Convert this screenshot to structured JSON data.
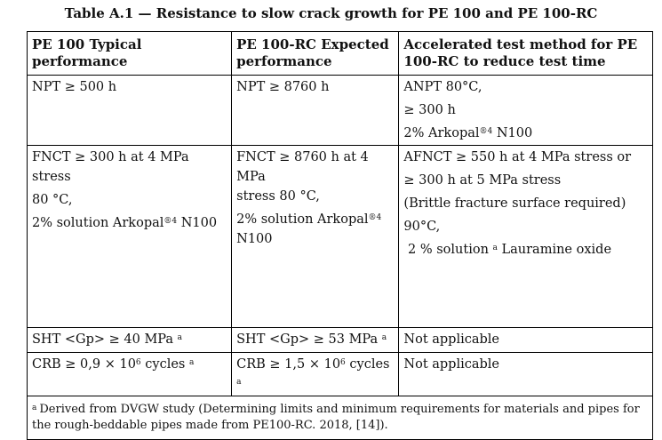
{
  "caption": "Table A.1 — Resistance to slow crack growth for PE 100 and PE 100-RC",
  "headers": [
    "PE 100 Typical performance",
    "PE 100-RC Expected performance",
    "Accelerated test method for PE 100-RC to reduce test time"
  ],
  "rows": {
    "npt": {
      "c1": "NPT ≥ 500 h",
      "c2": "NPT ≥ 8760 h",
      "c3": [
        "ANPT 80°C,",
        "≥ 300 h",
        "2% Arkopal",
        "N100"
      ],
      "c3_mark": "®4"
    },
    "fnct": {
      "c1": [
        "FNCT ≥ 300 h at 4 MPa stress",
        "80 °C,",
        "2% solution Arkopal",
        "N100"
      ],
      "c1_mark": "®4",
      "c2": [
        "FNCT ≥ 8760 h at 4 MPa",
        "stress 80 °C,",
        "2% solution Arkopal",
        "N100"
      ],
      "c2_mark": "®4",
      "c3": [
        "AFNCT ≥ 550 h at 4 MPa stress or",
        "≥ 300 h at 5 MPa stress",
        "(Brittle fracture surface required)",
        "90°C,",
        "2 % solution",
        "Lauramine oxide"
      ],
      "c3_mark": "a"
    },
    "sht": {
      "c1": "SHT <Gp> ≥ 40 MPa",
      "c1_mark": "a",
      "c2": "SHT <Gp> ≥ 53 MPa",
      "c2_mark": "a",
      "c3": "Not applicable"
    },
    "crb": {
      "c1_pre": "CRB ≥ 0,9 × 10",
      "c1_exp": "6",
      "c1_post": " cycles",
      "c1_mark": "a",
      "c2_pre": "CRB ≥ 1,5 × 10",
      "c2_exp": "6",
      "c2_post": " cycles",
      "c2_mark": "a",
      "c3": "Not applicable"
    }
  },
  "footnote": {
    "mark": "a",
    "text": "Derived from DVGW study (Determining limits and minimum requirements for materials and pipes for the rough-beddable pipes made from PE100-RC. 2018, [14])."
  }
}
